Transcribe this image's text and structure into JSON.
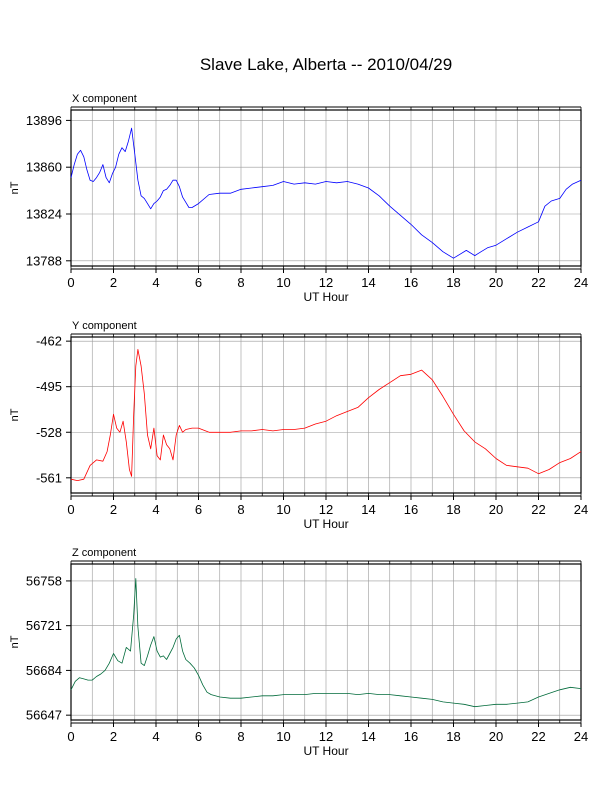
{
  "title": "Slave Lake, Alberta -- 2010/04/29",
  "chart_data": [
    {
      "type": "line",
      "title": "X component",
      "xlabel": "UT Hour",
      "ylabel": "nT",
      "xlim": [
        0,
        24
      ],
      "ylim": [
        13784,
        13904
      ],
      "x_ticks": [
        0,
        2,
        4,
        6,
        8,
        10,
        12,
        14,
        16,
        18,
        20,
        22,
        24
      ],
      "y_ticks": [
        13788,
        13824,
        13860,
        13896
      ],
      "grid": true,
      "series": [
        {
          "color": "#0000ff",
          "x": [
            0,
            0.15,
            0.3,
            0.45,
            0.6,
            0.75,
            0.9,
            1.05,
            1.2,
            1.35,
            1.5,
            1.65,
            1.8,
            1.95,
            2.1,
            2.25,
            2.4,
            2.55,
            2.7,
            2.85,
            3.0,
            3.15,
            3.3,
            3.45,
            3.6,
            3.75,
            3.9,
            4.05,
            4.2,
            4.35,
            4.5,
            4.65,
            4.8,
            4.95,
            5.1,
            5.25,
            5.4,
            5.55,
            5.7,
            6,
            6.5,
            7,
            7.5,
            8,
            8.5,
            9,
            9.5,
            10,
            10.5,
            11,
            11.5,
            12,
            12.5,
            13,
            13.5,
            14,
            14.5,
            15,
            15.5,
            16,
            16.5,
            17,
            17.5,
            18,
            18.3,
            18.6,
            19,
            19.3,
            19.6,
            20,
            20.5,
            21,
            21.5,
            22,
            22.3,
            22.6,
            23,
            23.3,
            23.6,
            24
          ],
          "values": [
            13852,
            13862,
            13870,
            13873,
            13868,
            13858,
            13850,
            13849,
            13852,
            13856,
            13862,
            13852,
            13848,
            13855,
            13860,
            13870,
            13875,
            13872,
            13880,
            13890,
            13870,
            13850,
            13838,
            13836,
            13832,
            13828,
            13832,
            13834,
            13837,
            13842,
            13843,
            13846,
            13850,
            13850,
            13845,
            13837,
            13833,
            13829,
            13829,
            13832,
            13839,
            13840,
            13840,
            13843,
            13844,
            13845,
            13846,
            13849,
            13847,
            13848,
            13847,
            13849,
            13848,
            13849,
            13847,
            13844,
            13838,
            13830,
            13823,
            13816,
            13808,
            13802,
            13795,
            13790,
            13793,
            13796,
            13792,
            13795,
            13798,
            13800,
            13805,
            13810,
            13814,
            13818,
            13830,
            13834,
            13836,
            13843,
            13847,
            13850
          ]
        }
      ]
    },
    {
      "type": "line",
      "title": "Y component",
      "xlabel": "UT Hour",
      "ylabel": "nT",
      "xlim": [
        0,
        24
      ],
      "ylim": [
        -572,
        -459
      ],
      "x_ticks": [
        0,
        2,
        4,
        6,
        8,
        10,
        12,
        14,
        16,
        18,
        20,
        22,
        24
      ],
      "y_ticks": [
        -561,
        -528,
        -495,
        -462
      ],
      "grid": true,
      "series": [
        {
          "color": "#ff0000",
          "x": [
            0,
            0.3,
            0.6,
            0.9,
            1.2,
            1.5,
            1.7,
            1.85,
            2.0,
            2.15,
            2.3,
            2.45,
            2.6,
            2.75,
            2.85,
            2.95,
            3.05,
            3.15,
            3.3,
            3.45,
            3.6,
            3.75,
            3.9,
            4.05,
            4.2,
            4.35,
            4.5,
            4.65,
            4.8,
            4.95,
            5.1,
            5.25,
            5.4,
            5.7,
            6,
            6.5,
            7,
            7.5,
            8,
            8.5,
            9,
            9.5,
            10,
            10.5,
            11,
            11.5,
            12,
            12.5,
            13,
            13.5,
            14,
            14.5,
            15,
            15.5,
            16,
            16.5,
            17,
            17.5,
            18,
            18.5,
            19,
            19.5,
            20,
            20.5,
            21,
            21.5,
            22,
            22.5,
            23,
            23.5,
            24
          ],
          "values": [
            -562,
            -563,
            -562,
            -552,
            -548,
            -549,
            -542,
            -530,
            -515,
            -525,
            -528,
            -520,
            -535,
            -555,
            -560,
            -515,
            -480,
            -468,
            -480,
            -500,
            -530,
            -540,
            -525,
            -545,
            -548,
            -530,
            -537,
            -540,
            -548,
            -530,
            -523,
            -528,
            -526,
            -525,
            -525,
            -528,
            -528,
            -528,
            -527,
            -527,
            -526,
            -527,
            -526,
            -526,
            -525,
            -522,
            -520,
            -516,
            -513,
            -510,
            -503,
            -497,
            -492,
            -487,
            -486,
            -483,
            -490,
            -502,
            -515,
            -527,
            -535,
            -540,
            -547,
            -552,
            -553,
            -554,
            -558,
            -555,
            -550,
            -547,
            -542
          ]
        }
      ]
    },
    {
      "type": "line",
      "title": "Z component",
      "xlabel": "UT Hour",
      "ylabel": "nT",
      "xlim": [
        0,
        24
      ],
      "ylim": [
        56643,
        56772
      ],
      "x_ticks": [
        0,
        2,
        4,
        6,
        8,
        10,
        12,
        14,
        16,
        18,
        20,
        22,
        24
      ],
      "y_ticks": [
        56647,
        56684,
        56721,
        56758
      ],
      "grid": true,
      "series": [
        {
          "color": "#006a3a",
          "x": [
            0,
            0.2,
            0.4,
            0.6,
            0.8,
            1.0,
            1.2,
            1.4,
            1.6,
            1.8,
            2.0,
            2.2,
            2.4,
            2.6,
            2.8,
            2.95,
            3.05,
            3.15,
            3.3,
            3.45,
            3.6,
            3.75,
            3.9,
            4.05,
            4.2,
            4.35,
            4.5,
            4.65,
            4.8,
            4.95,
            5.1,
            5.25,
            5.4,
            5.6,
            5.8,
            6.0,
            6.2,
            6.4,
            6.6,
            7,
            7.5,
            8,
            8.5,
            9,
            9.5,
            10,
            10.5,
            11,
            11.5,
            12,
            12.5,
            13,
            13.5,
            14,
            14.5,
            15,
            15.5,
            16,
            16.5,
            17,
            17.5,
            18,
            18.5,
            19,
            19.5,
            20,
            20.5,
            21,
            21.5,
            22,
            22.5,
            23,
            23.5,
            24
          ],
          "values": [
            56668,
            56675,
            56678,
            56677,
            56676,
            56676,
            56679,
            56681,
            56684,
            56690,
            56698,
            56692,
            56690,
            56703,
            56700,
            56730,
            56760,
            56720,
            56690,
            56688,
            56696,
            56705,
            56712,
            56700,
            56695,
            56696,
            56693,
            56698,
            56703,
            56710,
            56713,
            56700,
            56693,
            56690,
            56686,
            56680,
            56672,
            56666,
            56664,
            56662,
            56661,
            56661,
            56662,
            56663,
            56663,
            56664,
            56664,
            56664,
            56665,
            56665,
            56665,
            56665,
            56664,
            56665,
            56664,
            56664,
            56663,
            56662,
            56661,
            56660,
            56658,
            56657,
            56656,
            56654,
            56655,
            56656,
            56656,
            56657,
            56658,
            56662,
            56665,
            56668,
            56670,
            56669
          ]
        }
      ]
    }
  ]
}
